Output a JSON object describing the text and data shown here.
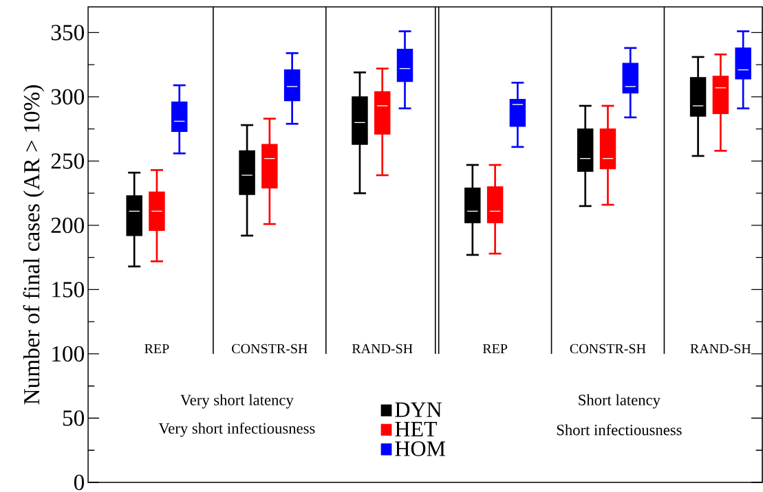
{
  "chart_data": {
    "type": "box",
    "ylabel": "Number of final cases (AR > 10%)",
    "categories": [
      "REP",
      "CONSTR-SH",
      "RAND-SH",
      "REP",
      "CONSTR-SH",
      "RAND-SH"
    ],
    "ylim": [
      0,
      370
    ],
    "yticks": [
      0,
      50,
      100,
      150,
      200,
      250,
      300,
      350
    ],
    "grid": "x",
    "legend": "bottom",
    "annotations": [
      "Very short latency",
      "Very short infectiousness",
      "Short latency",
      "Short infectiousness"
    ],
    "series": [
      {
        "name": "DYN",
        "color": "#000000",
        "boxes": [
          {
            "low": 168,
            "q1": 192,
            "median": 211,
            "q3": 223,
            "high": 241
          },
          {
            "low": 192,
            "q1": 224,
            "median": 239,
            "q3": 258,
            "high": 278
          },
          {
            "low": 225,
            "q1": 263,
            "median": 280,
            "q3": 300,
            "high": 319
          },
          {
            "low": 177,
            "q1": 202,
            "median": 211,
            "q3": 229,
            "high": 247
          },
          {
            "low": 215,
            "q1": 242,
            "median": 252,
            "q3": 275,
            "high": 293
          },
          {
            "low": 254,
            "q1": 285,
            "median": 293,
            "q3": 315,
            "high": 331
          }
        ]
      },
      {
        "name": "HET",
        "color": "#ff0000",
        "boxes": [
          {
            "low": 172,
            "q1": 196,
            "median": 211,
            "q3": 226,
            "high": 243
          },
          {
            "low": 201,
            "q1": 229,
            "median": 252,
            "q3": 263,
            "high": 283
          },
          {
            "low": 239,
            "q1": 271,
            "median": 293,
            "q3": 304,
            "high": 322
          },
          {
            "low": 178,
            "q1": 202,
            "median": 211,
            "q3": 230,
            "high": 247
          },
          {
            "low": 216,
            "q1": 244,
            "median": 252,
            "q3": 275,
            "high": 293
          },
          {
            "low": 258,
            "q1": 287,
            "median": 307,
            "q3": 316,
            "high": 333
          }
        ]
      },
      {
        "name": "HOM",
        "color": "#0000ff",
        "boxes": [
          {
            "low": 256,
            "q1": 273,
            "median": 281,
            "q3": 296,
            "high": 309
          },
          {
            "low": 279,
            "q1": 297,
            "median": 308,
            "q3": 321,
            "high": 334
          },
          {
            "low": 291,
            "q1": 312,
            "median": 322,
            "q3": 337,
            "high": 351
          },
          {
            "low": 261,
            "q1": 277,
            "median": 294,
            "q3": 298,
            "high": 311
          },
          {
            "low": 284,
            "q1": 303,
            "median": 308,
            "q3": 326,
            "high": 338
          },
          {
            "low": 291,
            "q1": 314,
            "median": 321,
            "q3": 338,
            "high": 351
          }
        ]
      }
    ]
  }
}
